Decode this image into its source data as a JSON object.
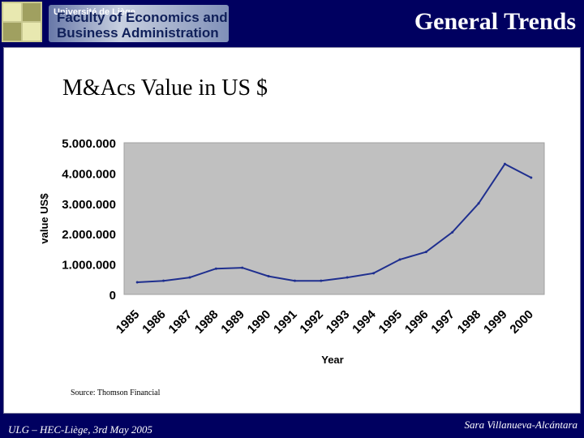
{
  "header": {
    "university": "Université de Liège",
    "faculty_line1": "Faculty of Economics and",
    "faculty_line2": "Business Administration",
    "title": "General Trends"
  },
  "slide": {
    "title": "M&Acs Value in US $",
    "source": "Source: Thomson Financial"
  },
  "footer": {
    "left": "ULG – HEC-Liège, 3rd May 2005",
    "right": "Sara Villanueva-Alcántara"
  },
  "colors": {
    "background": "#000060",
    "plot_area": "#c0c0c0",
    "line": "#1f2f8f"
  },
  "chart_data": {
    "type": "line",
    "title": "",
    "xlabel": "Year",
    "ylabel": "value US$",
    "x": [
      "1985",
      "1986",
      "1987",
      "1988",
      "1989",
      "1990",
      "1991",
      "1992",
      "1993",
      "1994",
      "1995",
      "1996",
      "1997",
      "1998",
      "1999",
      "2000"
    ],
    "ytick_labels": [
      "0",
      "1.000.000",
      "2.000.000",
      "3.000.000",
      "4.000.000",
      "5.000.000"
    ],
    "ylim": [
      0,
      5000000
    ],
    "grid": false,
    "series": [
      {
        "values": [
          400000,
          450000,
          560000,
          850000,
          880000,
          600000,
          450000,
          450000,
          560000,
          700000,
          1150000,
          1400000,
          2050000,
          3000000,
          4300000,
          3850000
        ]
      }
    ]
  }
}
